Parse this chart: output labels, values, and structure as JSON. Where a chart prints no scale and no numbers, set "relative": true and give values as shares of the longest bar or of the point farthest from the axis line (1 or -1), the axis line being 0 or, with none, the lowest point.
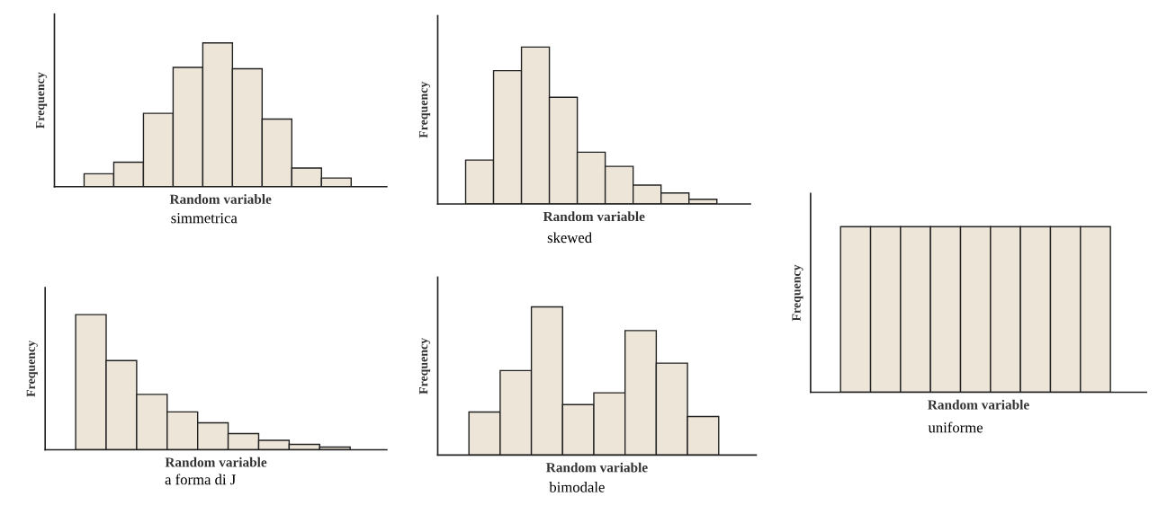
{
  "chart_data": [
    {
      "type": "bar",
      "relative": true,
      "categories": [
        null,
        null,
        null,
        null,
        null,
        null,
        null,
        null,
        null
      ],
      "values": [
        0.09,
        0.17,
        0.51,
        0.83,
        1,
        0.82,
        0.47,
        0.13,
        0.06
      ],
      "color": "#ece5d8",
      "xlabel": "Random variable",
      "ylabel": "Frequency",
      "annotations": [
        "simmetrica"
      ],
      "tick_labels": false
    },
    {
      "type": "bar",
      "relative": true,
      "categories": [
        null,
        null,
        null,
        null,
        null,
        null,
        null,
        null,
        null
      ],
      "values": [
        0.28,
        0.85,
        1,
        0.68,
        0.33,
        0.24,
        0.12,
        0.07,
        0.03
      ],
      "color": "#ece5d8",
      "xlabel": "Random variable",
      "ylabel": "Frequency",
      "annotations": [
        "skewed"
      ],
      "tick_labels": false
    },
    {
      "type": "bar",
      "relative": true,
      "categories": [
        null,
        null,
        null,
        null,
        null,
        null,
        null,
        null,
        null
      ],
      "values": [
        1,
        0.66,
        0.41,
        0.28,
        0.2,
        0.12,
        0.07,
        0.04,
        0.02
      ],
      "color": "#ece5d8",
      "xlabel": "Random variable",
      "ylabel": "Frequency",
      "annotations": [
        "a forma di J"
      ],
      "tick_labels": false
    },
    {
      "type": "bar",
      "relative": true,
      "categories": [
        null,
        null,
        null,
        null,
        null,
        null,
        null,
        null
      ],
      "values": [
        0.29,
        0.57,
        1,
        0.34,
        0.42,
        0.84,
        0.62,
        0.26
      ],
      "color": "#ece5d8",
      "xlabel": "Random variable",
      "ylabel": "Frequency",
      "annotations": [
        "bimodale"
      ],
      "tick_labels": false
    },
    {
      "type": "bar",
      "relative": true,
      "categories": [
        null,
        null,
        null,
        null,
        null,
        null,
        null,
        null,
        null
      ],
      "values": [
        1,
        1,
        1,
        1,
        1,
        1,
        1,
        1,
        1
      ],
      "color": "#ece5d8",
      "xlabel": "Random variable",
      "ylabel": "Frequency",
      "annotations": [
        "uniforme"
      ],
      "tick_labels": false
    }
  ]
}
